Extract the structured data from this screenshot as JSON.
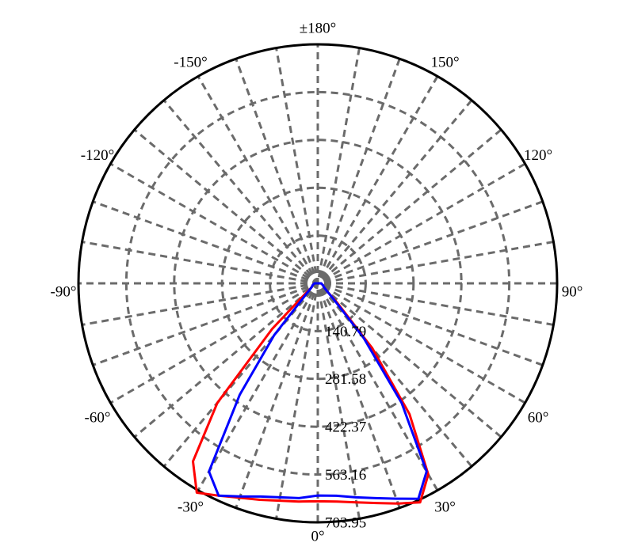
{
  "chart_data": {
    "type": "polar",
    "theta": [
      -90,
      -85,
      -80,
      -75,
      -70,
      -65,
      -60,
      -55,
      -50,
      -45,
      -40,
      -35,
      -30,
      -25,
      -20,
      -15,
      -10,
      -5,
      0,
      5,
      10,
      15,
      20,
      25,
      30,
      35,
      40,
      45,
      50,
      55,
      60,
      65,
      70,
      75,
      80,
      85,
      90
    ],
    "series": [
      {
        "color": "#ff0000",
        "values": [
          10,
          10,
          12,
          14,
          16,
          18,
          20,
          25,
          50,
          190,
          460,
          640,
          712,
          690,
          672,
          660,
          650,
          645,
          642,
          645,
          655,
          670,
          690,
          712,
          650,
          470,
          250,
          80,
          35,
          25,
          20,
          18,
          16,
          14,
          12,
          10,
          10
        ]
      },
      {
        "color": "#0000ff",
        "values": [
          10,
          10,
          12,
          14,
          16,
          18,
          20,
          25,
          35,
          60,
          200,
          400,
          640,
          690,
          668,
          650,
          640,
          635,
          625,
          628,
          640,
          655,
          675,
          700,
          640,
          430,
          210,
          65,
          35,
          25,
          20,
          18,
          16,
          14,
          12,
          10,
          10
        ]
      }
    ],
    "rlim": [
      0,
      703.95
    ],
    "rticks": [
      140.79,
      281.58,
      422.37,
      563.16,
      703.95
    ],
    "theta_gridlines": [
      0,
      10,
      20,
      30,
      40,
      50,
      60,
      70,
      80,
      90,
      100,
      110,
      120,
      130,
      140,
      150,
      160,
      170
    ],
    "thetaticks": [
      {
        "value": 0,
        "label": "0°"
      },
      {
        "value": 30,
        "label": "30°"
      },
      {
        "value": 60,
        "label": "60°"
      },
      {
        "value": 90,
        "label": "90°"
      },
      {
        "value": 120,
        "label": "120°"
      },
      {
        "value": 150,
        "label": "150°"
      },
      {
        "value": 180,
        "label": "±180°"
      },
      {
        "value": -150,
        "label": "-150°"
      },
      {
        "value": -120,
        "label": "-120°"
      },
      {
        "value": -90,
        "label": "-90°"
      },
      {
        "value": -60,
        "label": "-60°"
      },
      {
        "value": -30,
        "label": "-30°"
      }
    ]
  }
}
